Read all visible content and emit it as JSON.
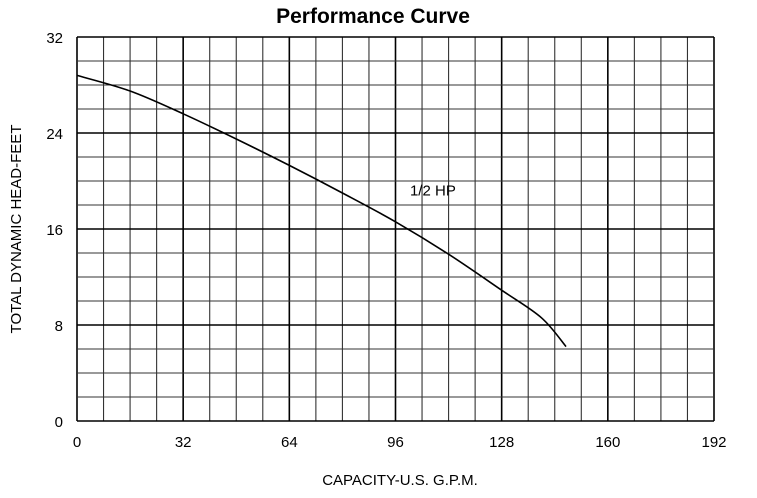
{
  "chart_data": {
    "type": "line",
    "title": "Performance Curve",
    "xlabel": "CAPACITY-U.S. G.P.M.",
    "ylabel": "TOTAL DYNAMIC HEAD-FEET",
    "xlim": [
      0,
      192
    ],
    "ylim": [
      0,
      32
    ],
    "xticks": [
      0,
      32,
      64,
      96,
      128,
      160,
      192
    ],
    "yticks": [
      0,
      8,
      16,
      24,
      32
    ],
    "x_minor_step": 8,
    "y_minor_step": 2,
    "grid": true,
    "series": [
      {
        "name": "1/2 HP",
        "x": [
          0,
          16,
          32,
          48,
          64,
          80,
          96,
          112,
          128,
          140,
          147.4
        ],
        "y": [
          28.8,
          27.5,
          25.6,
          23.5,
          21.3,
          19.0,
          16.6,
          13.9,
          10.9,
          8.6,
          6.2
        ]
      }
    ],
    "annotations": [
      {
        "text": "1/2 HP",
        "x": 108.5,
        "y": 19.2
      }
    ],
    "line_color": "#000000"
  }
}
